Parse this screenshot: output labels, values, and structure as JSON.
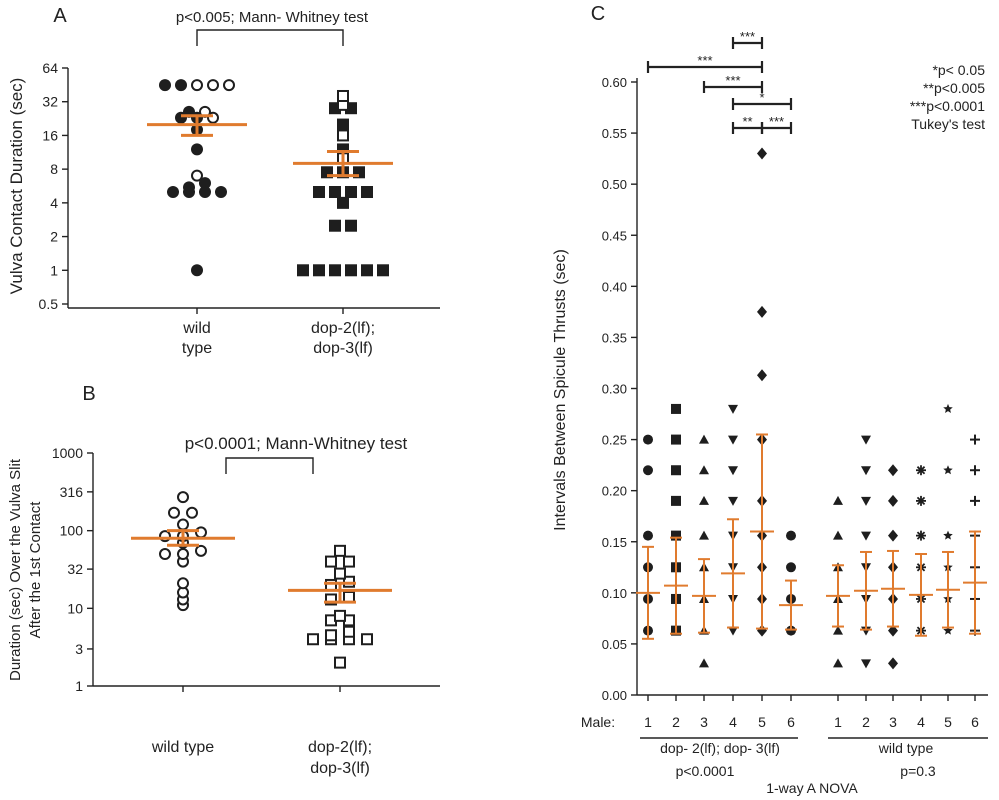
{
  "chart_data": [
    {
      "panel": "A",
      "type": "scatter",
      "ylabel": "Vulva Contact Duration (sec)",
      "y_scale": "log2",
      "y_ticks": [
        "0.5",
        "1",
        "2",
        "4",
        "8",
        "16",
        "32",
        "64"
      ],
      "categories": [
        "wild type",
        "dop-2(lf); dop-3(lf)"
      ],
      "category_lines": [
        [
          "wild",
          "type"
        ],
        [
          "dop-2(lf);",
          "dop-3(lf)"
        ]
      ],
      "annotation": "p<0.005;  Mann- Whitney test",
      "groups": [
        {
          "category": "wild type",
          "marker": "circle-mixed",
          "filled_values": [
            1,
            5,
            5,
            5,
            5,
            5.5,
            6,
            12,
            18,
            23,
            23,
            26,
            45,
            45
          ],
          "open_values": [
            7,
            23,
            26,
            45,
            45,
            45
          ],
          "mean": 20,
          "sem_low": 16,
          "sem_high": 24
        },
        {
          "category": "dop-2(lf); dop-3(lf)",
          "marker": "square-mixed",
          "filled_values": [
            1,
            1,
            1,
            1,
            1,
            1,
            2.5,
            2.5,
            4,
            5,
            5,
            5,
            5,
            7.5,
            7.5,
            7.5,
            12,
            20,
            28,
            28
          ],
          "open_values": [
            10,
            16,
            30,
            36
          ],
          "mean": 9,
          "sem_low": 7,
          "sem_high": 11.5
        }
      ]
    },
    {
      "panel": "B",
      "type": "scatter",
      "ylabel_lines": [
        "Duration (sec) Over the Vulva Slit",
        "After the 1st Contact"
      ],
      "y_scale": "log10",
      "y_ticks": [
        "1",
        "3",
        "10",
        "32",
        "100",
        "316",
        "1000"
      ],
      "categories": [
        "wild type",
        "dop-2(lf); dop-3(lf)"
      ],
      "category_lines": [
        [
          "wild type"
        ],
        [
          "dop-2(lf);",
          "dop-3(lf)"
        ]
      ],
      "annotation": "p<0.0001;  Mann-Whitney test",
      "groups": [
        {
          "category": "wild type",
          "marker": "circle-open",
          "values": [
            11,
            13,
            16,
            21,
            40,
            50,
            50,
            55,
            70,
            85,
            85,
            95,
            120,
            170,
            170,
            270
          ],
          "mean": 80,
          "sem_low": 65,
          "sem_high": 100
        },
        {
          "category": "dop-2(lf); dop-3(lf)",
          "marker": "square-open",
          "values": [
            2,
            4,
            4,
            4,
            4,
            4.5,
            5,
            7,
            7,
            8,
            13,
            14,
            20,
            22,
            28,
            40,
            40,
            55
          ],
          "mean": 17,
          "sem_low": 12,
          "sem_high": 21
        }
      ]
    },
    {
      "panel": "C",
      "type": "scatter",
      "ylabel": "Intervals Between Spicule Thrusts (sec)",
      "ylim": [
        0,
        0.6
      ],
      "y_ticks": [
        "0.00",
        "0.05",
        "0.10",
        "0.15",
        "0.20",
        "0.25",
        "0.30",
        "0.35",
        "0.40",
        "0.45",
        "0.50",
        "0.55",
        "0.60"
      ],
      "x_prefix": "Male:",
      "male_labels": [
        "1",
        "2",
        "3",
        "4",
        "5",
        "6",
        "1",
        "2",
        "3",
        "4",
        "5",
        "6"
      ],
      "group_labels": [
        "dop- 2(lf); dop- 3(lf)",
        "wild type"
      ],
      "group_pvalues": [
        "p<0.0001",
        "p=0.3"
      ],
      "test_label": "1-way  A NOVA",
      "legend": [
        "*p< 0.05",
        "**p<0.005",
        "***p<0.0001",
        "Tukey's test"
      ],
      "comparisons": [
        {
          "from": 4,
          "to": 5,
          "label": "***"
        },
        {
          "from": 1,
          "to": 5,
          "label": "***"
        },
        {
          "from": 3,
          "to": 5,
          "label": "***"
        },
        {
          "from": 4,
          "to": 6,
          "label": "*"
        },
        {
          "from": 4,
          "to": 5,
          "label": "**"
        },
        {
          "from": 5,
          "to": 6,
          "label": "***"
        }
      ],
      "series": [
        {
          "group": "dop-2(lf); dop-3(lf)",
          "male": "1",
          "marker": "circle",
          "values": [
            0.25,
            0.22,
            0.156,
            0.125,
            0.094,
            0.063
          ],
          "mean": 0.1,
          "sd": 0.045
        },
        {
          "group": "dop-2(lf); dop-3(lf)",
          "male": "2",
          "marker": "square",
          "values": [
            0.28,
            0.25,
            0.22,
            0.19,
            0.156,
            0.125,
            0.094,
            0.063
          ],
          "mean": 0.107,
          "sd": 0.047
        },
        {
          "group": "dop-2(lf); dop-3(lf)",
          "male": "3",
          "marker": "triangle-up",
          "values": [
            0.25,
            0.22,
            0.19,
            0.156,
            0.125,
            0.094,
            0.063,
            0.031
          ],
          "mean": 0.097,
          "sd": 0.036
        },
        {
          "group": "dop-2(lf); dop-3(lf)",
          "male": "4",
          "marker": "triangle-down",
          "values": [
            0.28,
            0.25,
            0.22,
            0.19,
            0.156,
            0.125,
            0.094,
            0.063
          ],
          "mean": 0.119,
          "sd": 0.053
        },
        {
          "group": "dop-2(lf); dop-3(lf)",
          "male": "5",
          "marker": "diamond",
          "values": [
            0.53,
            0.375,
            0.313,
            0.25,
            0.19,
            0.156,
            0.125,
            0.094,
            0.063
          ],
          "mean": 0.16,
          "sd": 0.095
        },
        {
          "group": "dop-2(lf); dop-3(lf)",
          "male": "6",
          "marker": "circle",
          "values": [
            0.156,
            0.125,
            0.094,
            0.063
          ],
          "mean": 0.088,
          "sd": 0.024
        },
        {
          "group": "wild type",
          "male": "1",
          "marker": "triangle-up",
          "values": [
            0.19,
            0.156,
            0.125,
            0.094,
            0.063,
            0.031
          ],
          "mean": 0.097,
          "sd": 0.03
        },
        {
          "group": "wild type",
          "male": "2",
          "marker": "triangle-down",
          "values": [
            0.25,
            0.22,
            0.19,
            0.156,
            0.125,
            0.094,
            0.063,
            0.031
          ],
          "mean": 0.102,
          "sd": 0.038
        },
        {
          "group": "wild type",
          "male": "3",
          "marker": "diamond",
          "values": [
            0.22,
            0.19,
            0.156,
            0.125,
            0.094,
            0.063,
            0.031
          ],
          "mean": 0.104,
          "sd": 0.037
        },
        {
          "group": "wild type",
          "male": "4",
          "marker": "asterisk",
          "values": [
            0.22,
            0.19,
            0.156,
            0.125,
            0.094,
            0.063
          ],
          "mean": 0.098,
          "sd": 0.04
        },
        {
          "group": "wild type",
          "male": "5",
          "marker": "star",
          "values": [
            0.28,
            0.22,
            0.156,
            0.125,
            0.094,
            0.063
          ],
          "mean": 0.103,
          "sd": 0.037
        },
        {
          "group": "wild type",
          "male": "6",
          "marker": "plus",
          "values": [
            0.25,
            0.22,
            0.19,
            0.156,
            0.125,
            0.094,
            0.063
          ],
          "mean": 0.11,
          "sd": 0.05
        }
      ]
    }
  ],
  "colors": {
    "mean_bar": "#e07b2e",
    "points": "#1e1e1e"
  }
}
